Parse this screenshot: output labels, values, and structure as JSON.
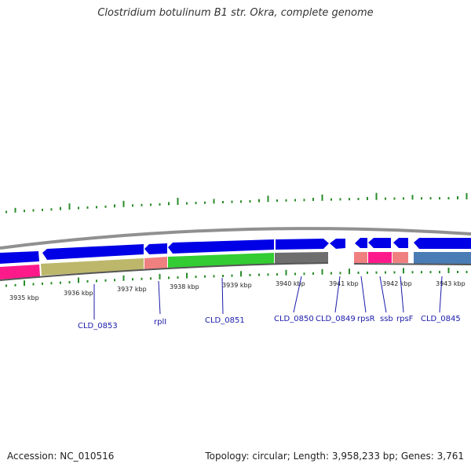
{
  "title": "Clostridium botulinum B1 str. Okra, complete genome",
  "accession": "Accession: NC_010516",
  "stats": "Topology: circular; Length: 3,958,233 bp; Genes: 3,761",
  "kbp_ticks": [
    "3935 kbp",
    "3936 kbp",
    "3937 kbp",
    "3938 kbp",
    "3939 kbp",
    "3940 kbp",
    "3941 kbp",
    "3942 kbp",
    "3943 kbp"
  ],
  "gene_labels": [
    "CLD_0853",
    "rplI",
    "CLD_0851",
    "CLD_0850",
    "CLD_0849",
    "rpsR",
    "ssb",
    "rpsF",
    "CLD_0845"
  ],
  "colors": {
    "forward_strand": "#0000e6",
    "backbone": "#808080",
    "gc_skew": "#2a8c2a",
    "cog_magenta": "#ff1a8c",
    "cog_khaki": "#bdb76b",
    "cog_salmon": "#f08080",
    "cog_green": "#33cc33",
    "cog_gray": "#6e6e6e",
    "cog_steelblue": "#4a7db5"
  }
}
